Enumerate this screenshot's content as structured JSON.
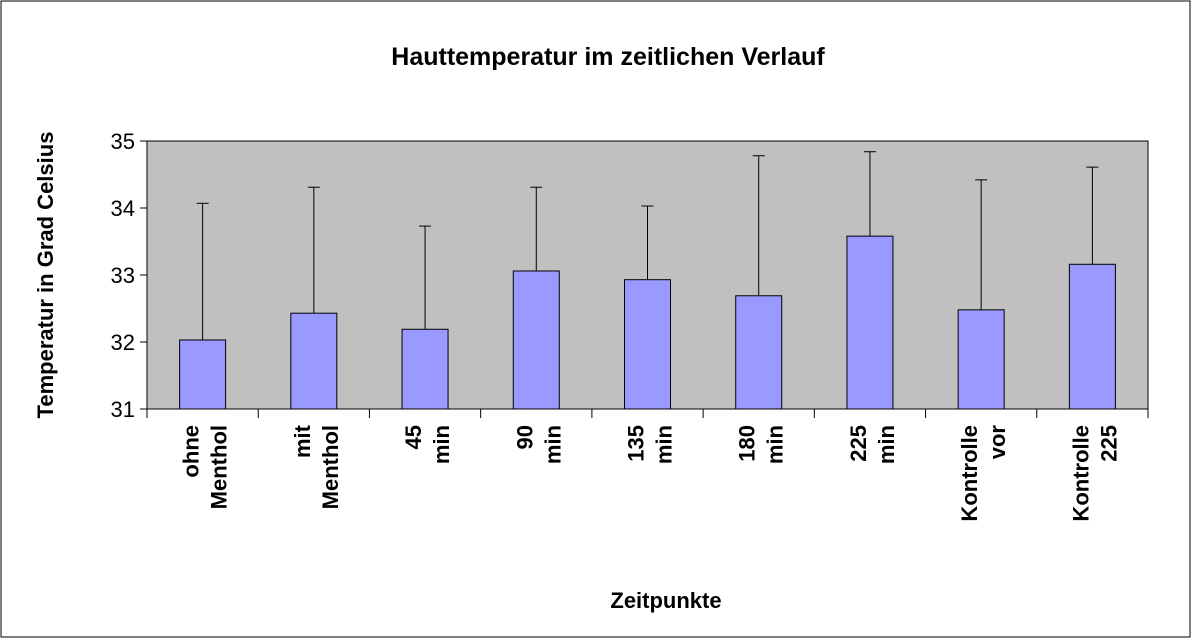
{
  "chart_data": {
    "type": "bar",
    "title": "Hauttemperatur im zeitlichen Verlauf",
    "x_label": "Zeitpunkte",
    "y_label": "Temperatur in Grad Celsius",
    "categories": [
      "ohne Menthol",
      "mit Menthol",
      "45 min",
      "90 min",
      "135 min",
      "180 min",
      "225 min",
      "Kontrolle vor",
      "Kontrolle 225"
    ],
    "values": [
      32.03,
      32.43,
      32.19,
      33.06,
      32.93,
      32.69,
      33.58,
      32.48,
      33.16
    ],
    "errors": [
      2.04,
      1.88,
      1.54,
      1.25,
      1.1,
      2.09,
      1.26,
      1.94,
      1.45
    ],
    "color": "#9999ff",
    "plot_background": "#c0c0c0",
    "ylim": [
      31,
      35
    ],
    "yticks": [
      31,
      32,
      33,
      34,
      35
    ]
  }
}
